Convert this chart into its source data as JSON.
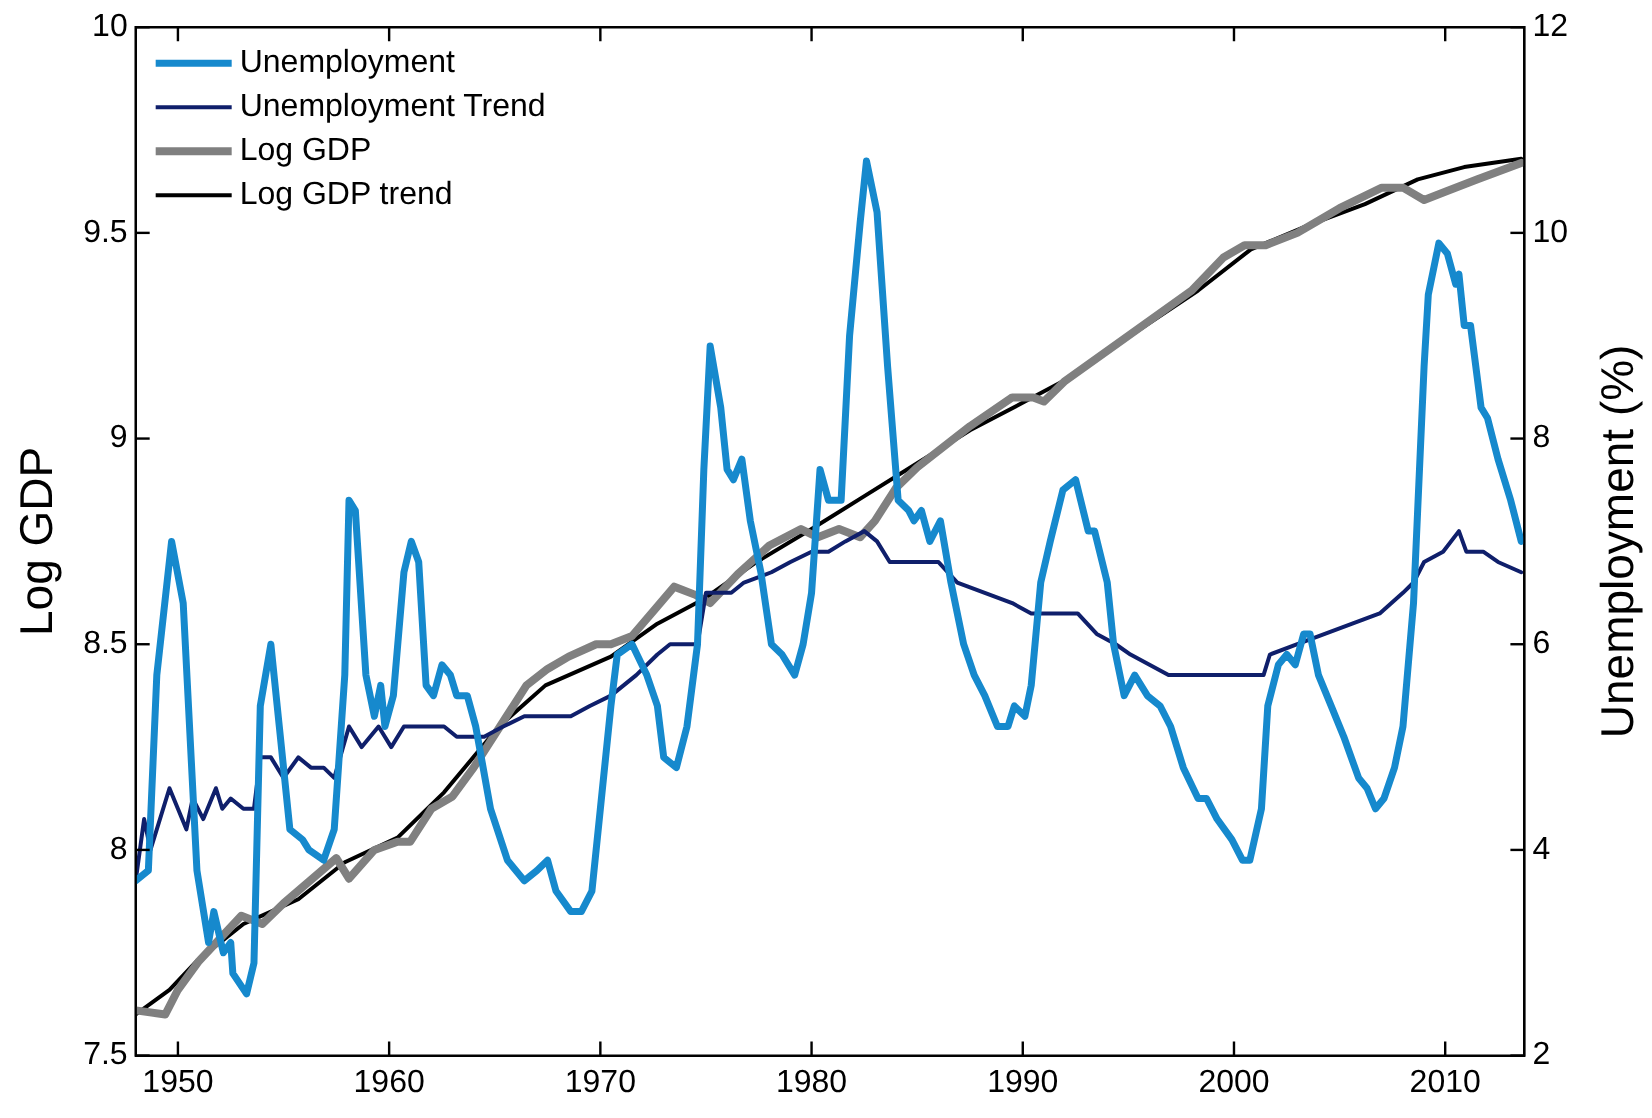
{
  "chart_data": {
    "type": "line",
    "xlabel": null,
    "ylabel": "Log GDP",
    "y2label": "Unemployment (%)",
    "xlim": [
      1948,
      2013.75
    ],
    "xticks": [
      1950,
      1960,
      1970,
      1980,
      1990,
      2000,
      2010
    ],
    "ylim": [
      7.5,
      10
    ],
    "yticks": [
      7.5,
      8,
      8.5,
      9,
      9.5,
      10
    ],
    "y2lim": [
      2,
      12
    ],
    "y2ticks": [
      2,
      4,
      6,
      8,
      10,
      12
    ],
    "grid": false,
    "legend": "top left",
    "marker": "none",
    "series": [
      {
        "name": "Unemployment",
        "color": "#1689cd",
        "axis": "y2",
        "x": [
          1948.0,
          1948.6,
          1949.0,
          1949.7,
          1950.25,
          1950.9,
          1951.45,
          1951.7,
          1952.15,
          1952.5,
          1952.6,
          1953.25,
          1953.6,
          1953.9,
          1954.4,
          1954.8,
          1955.3,
          1955.9,
          1956.2,
          1956.9,
          1957.4,
          1957.9,
          1958.1,
          1958.4,
          1958.9,
          1959.3,
          1959.6,
          1959.8,
          1960.2,
          1960.7,
          1961.05,
          1961.4,
          1961.75,
          1962.1,
          1962.5,
          1962.9,
          1963.2,
          1963.7,
          1964.1,
          1964.8,
          1965.6,
          1966.4,
          1967.0,
          1967.5,
          1967.9,
          1968.6,
          1969.1,
          1969.6,
          1970.0,
          1970.5,
          1970.8,
          1971.5,
          1972.2,
          1972.7,
          1973.0,
          1973.6,
          1974.1,
          1974.6,
          1974.9,
          1975.2,
          1975.7,
          1976.0,
          1976.3,
          1976.7,
          1977.1,
          1977.6,
          1978.1,
          1978.6,
          1979.2,
          1979.6,
          1980.0,
          1980.4,
          1980.8,
          1981.4,
          1981.8,
          1982.3,
          1982.6,
          1983.1,
          1983.6,
          1984.1,
          1984.6,
          1984.85,
          1985.2,
          1985.6,
          1986.1,
          1986.6,
          1987.2,
          1987.7,
          1988.2,
          1988.8,
          1989.3,
          1989.6,
          1990.1,
          1990.4,
          1990.85,
          1991.3,
          1991.9,
          1992.5,
          1993.1,
          1993.4,
          1994.0,
          1994.3,
          1994.8,
          1995.3,
          1995.9,
          1996.5,
          1997.0,
          1997.6,
          1998.3,
          1998.7,
          1999.2,
          1999.9,
          2000.4,
          2000.75,
          2001.3,
          2001.6,
          2002.1,
          2002.5,
          2002.9,
          2003.3,
          2003.6,
          2004.0,
          2004.6,
          2005.2,
          2005.9,
          2006.3,
          2006.7,
          2007.1,
          2007.6,
          2008.0,
          2008.5,
          2009.0,
          2009.2,
          2009.7,
          2010.1,
          2010.5,
          2010.65,
          2010.9,
          2011.2,
          2011.7,
          2012.0,
          2012.5,
          2013.1,
          2013.6
        ],
        "values": [
          3.7,
          3.8,
          5.7,
          7.0,
          6.4,
          3.8,
          3.1,
          3.4,
          3.0,
          3.1,
          2.8,
          2.6,
          2.9,
          5.4,
          6.0,
          5.2,
          4.2,
          4.1,
          4.0,
          3.9,
          4.2,
          5.7,
          7.4,
          7.3,
          5.7,
          5.3,
          5.6,
          5.2,
          5.5,
          6.7,
          7.0,
          6.8,
          5.6,
          5.5,
          5.8,
          5.7,
          5.5,
          5.5,
          5.2,
          4.4,
          3.9,
          3.7,
          3.8,
          3.9,
          3.6,
          3.4,
          3.4,
          3.6,
          4.4,
          5.4,
          5.9,
          6.0,
          5.7,
          5.4,
          4.9,
          4.8,
          5.2,
          6.0,
          7.7,
          8.9,
          8.3,
          7.7,
          7.6,
          7.8,
          7.2,
          6.7,
          6.0,
          5.9,
          5.7,
          6.0,
          6.5,
          7.7,
          7.4,
          7.4,
          9.0,
          10.1,
          10.7,
          10.2,
          8.7,
          7.4,
          7.3,
          7.2,
          7.3,
          7.0,
          7.2,
          6.6,
          6.0,
          5.7,
          5.5,
          5.2,
          5.2,
          5.4,
          5.3,
          5.6,
          6.6,
          7.0,
          7.5,
          7.6,
          7.1,
          7.1,
          6.6,
          6.0,
          5.5,
          5.7,
          5.5,
          5.4,
          5.2,
          4.8,
          4.5,
          4.5,
          4.3,
          4.1,
          3.9,
          3.9,
          4.4,
          5.4,
          5.8,
          5.9,
          5.8,
          6.1,
          6.1,
          5.7,
          5.4,
          5.1,
          4.7,
          4.6,
          4.4,
          4.5,
          4.8,
          5.2,
          6.4,
          8.7,
          9.4,
          9.9,
          9.8,
          9.5,
          9.6,
          9.1,
          9.1,
          8.3,
          8.2,
          7.8,
          7.4,
          7.0
        ]
      },
      {
        "name": "Unemployment Trend",
        "color": "#0f1f6b",
        "axis": "y2",
        "x": [
          1948.0,
          1948.4,
          1948.7,
          1949.6,
          1950.0,
          1950.4,
          1950.7,
          1951.2,
          1951.8,
          1952.1,
          1952.5,
          1953.1,
          1953.6,
          1953.9,
          1954.4,
          1955.0,
          1955.7,
          1956.3,
          1956.9,
          1957.4,
          1958.1,
          1958.7,
          1959.5,
          1960.1,
          1960.7,
          1961.3,
          1962.0,
          1962.6,
          1963.2,
          1963.9,
          1964.5,
          1965.4,
          1966.4,
          1967.7,
          1968.6,
          1969.5,
          1970.5,
          1971.7,
          1972.7,
          1973.3,
          1974.6,
          1975.0,
          1976.2,
          1976.8,
          1978.1,
          1979.0,
          1980.0,
          1980.8,
          1981.6,
          1982.5,
          1983.1,
          1983.7,
          1985.0,
          1986.0,
          1986.9,
          1988.2,
          1989.5,
          1990.4,
          1991.6,
          1992.6,
          1993.5,
          1994.4,
          1995.1,
          1996.0,
          1996.9,
          1998.2,
          1999.1,
          2000.4,
          2001.4,
          2001.7,
          2003.0,
          2004.3,
          2005.6,
          2006.9,
          2008.0,
          2008.5,
          2009.0,
          2009.9,
          2010.65,
          2011.0,
          2011.8,
          2012.5,
          2013.6
        ],
        "values": [
          3.7,
          4.3,
          4.0,
          4.6,
          4.4,
          4.2,
          4.5,
          4.3,
          4.6,
          4.4,
          4.5,
          4.4,
          4.4,
          4.9,
          4.9,
          4.7,
          4.9,
          4.8,
          4.8,
          4.7,
          5.2,
          5.0,
          5.2,
          5.0,
          5.2,
          5.2,
          5.2,
          5.2,
          5.1,
          5.1,
          5.1,
          5.2,
          5.3,
          5.3,
          5.3,
          5.4,
          5.5,
          5.7,
          5.9,
          6.0,
          6.0,
          6.5,
          6.5,
          6.6,
          6.7,
          6.8,
          6.9,
          6.9,
          7.0,
          7.1,
          7.0,
          6.8,
          6.8,
          6.8,
          6.6,
          6.5,
          6.4,
          6.3,
          6.3,
          6.3,
          6.1,
          6.0,
          5.9,
          5.8,
          5.7,
          5.7,
          5.7,
          5.7,
          5.7,
          5.9,
          6.0,
          6.1,
          6.2,
          6.3,
          6.5,
          6.6,
          6.8,
          6.9,
          7.1,
          6.9,
          6.9,
          6.8,
          6.7
        ]
      },
      {
        "name": "Log GDP",
        "color": "#808080",
        "axis": "y",
        "x": [
          1948.0,
          1949.4,
          1950.0,
          1951.0,
          1953.0,
          1954.0,
          1955.0,
          1957.5,
          1958.1,
          1959.3,
          1960.4,
          1961.0,
          1962.0,
          1963.0,
          1964.0,
          1965.5,
          1966.5,
          1967.5,
          1968.5,
          1969.8,
          1970.5,
          1971.5,
          1972.5,
          1973.5,
          1974.5,
          1975.2,
          1976.5,
          1978.0,
          1979.5,
          1980.3,
          1981.3,
          1982.3,
          1983.0,
          1984.0,
          1985.0,
          1987.5,
          1989.5,
          1990.5,
          1991.0,
          1992.0,
          1995.0,
          1998.0,
          1999.5,
          2000.5,
          2001.5,
          2003.0,
          2005.0,
          2007.0,
          2008.0,
          2009.0,
          2010.0,
          2011.5,
          2013.6
        ],
        "values": [
          7.61,
          7.6,
          7.66,
          7.73,
          7.84,
          7.82,
          7.87,
          7.98,
          7.93,
          8.0,
          8.02,
          8.02,
          8.1,
          8.13,
          8.2,
          8.32,
          8.4,
          8.44,
          8.47,
          8.5,
          8.5,
          8.52,
          8.58,
          8.64,
          8.62,
          8.6,
          8.67,
          8.74,
          8.78,
          8.76,
          8.78,
          8.76,
          8.8,
          8.88,
          8.93,
          9.03,
          9.1,
          9.1,
          9.09,
          9.14,
          9.25,
          9.36,
          9.44,
          9.47,
          9.47,
          9.5,
          9.56,
          9.61,
          9.61,
          9.58,
          9.6,
          9.63,
          9.67
        ]
      },
      {
        "name": "Log GDP trend",
        "color": "#000000",
        "axis": "y",
        "x": [
          1948.0,
          1949.6,
          1950.9,
          1953.1,
          1955.7,
          1957.9,
          1960.4,
          1962.6,
          1965.2,
          1967.4,
          1970.5,
          1972.7,
          1974.9,
          1977.4,
          1980.0,
          1982.5,
          1985.0,
          1987.5,
          1990.1,
          1992.3,
          1995.1,
          1998.3,
          2000.8,
          2003.6,
          2006.2,
          2008.7,
          2010.9,
          2013.6
        ],
        "values": [
          7.6,
          7.66,
          7.73,
          7.82,
          7.88,
          7.97,
          8.03,
          8.14,
          8.3,
          8.4,
          8.47,
          8.55,
          8.61,
          8.7,
          8.78,
          8.86,
          8.94,
          9.02,
          9.09,
          9.15,
          9.25,
          9.36,
          9.46,
          9.52,
          9.57,
          9.63,
          9.66,
          9.68
        ]
      }
    ]
  }
}
